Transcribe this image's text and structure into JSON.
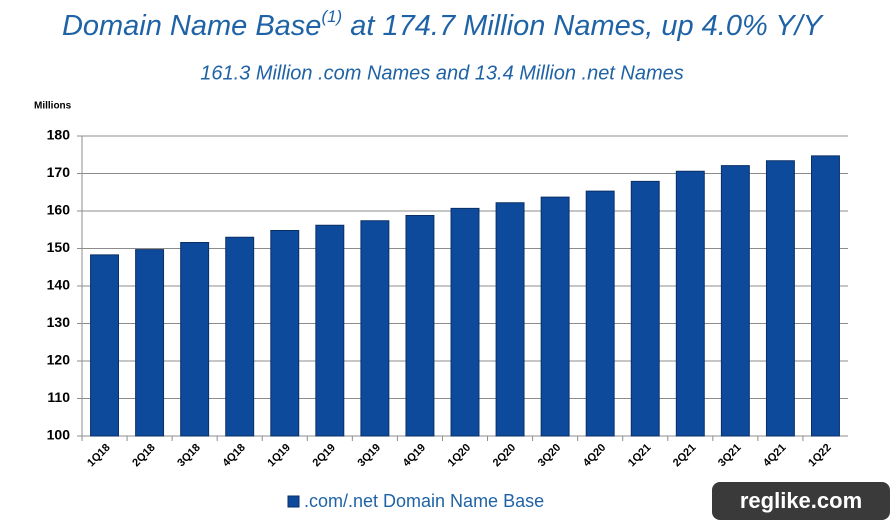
{
  "chart_data": {
    "type": "bar",
    "title": [
      "Domain Name Base",
      "(1)",
      " at 174.7 Million Names, up 4.0% Y/Y"
    ],
    "subtitle": "161.3 Million .com Names and 13.4 Million .net Names",
    "y_label": "Millions",
    "watermark": "reglike.com",
    "categories": [
      "1Q18",
      "2Q18",
      "3Q18",
      "4Q18",
      "1Q19",
      "2Q19",
      "3Q19",
      "4Q19",
      "1Q20",
      "2Q20",
      "3Q20",
      "4Q20",
      "1Q21",
      "2Q21",
      "3Q21",
      "4Q21",
      "1Q22"
    ],
    "series": [
      {
        "name": ".com/.net Domain Name Base",
        "color": "#0d4a9c",
        "values": [
          148.3,
          149.7,
          151.6,
          153.0,
          154.8,
          156.2,
          157.4,
          158.8,
          160.7,
          162.2,
          163.7,
          165.3,
          167.9,
          170.6,
          172.1,
          173.4,
          174.7
        ]
      }
    ],
    "ylim": [
      100,
      180
    ],
    "yticks": [
      100,
      110,
      120,
      130,
      140,
      150,
      160,
      170,
      180
    ],
    "grid": true
  }
}
